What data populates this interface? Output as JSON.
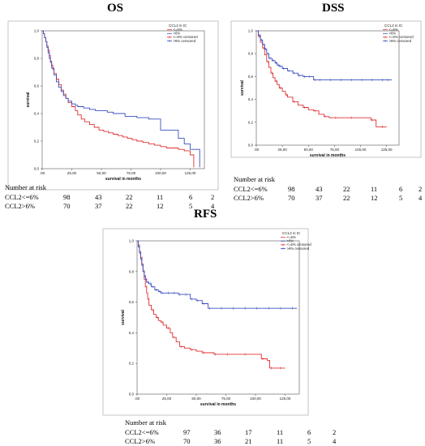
{
  "legend_title": "CCL2 in IC",
  "legend_items": [
    "<=6%",
    ">6%",
    "<=6% censored",
    ">6% censored"
  ],
  "ylabel": "survival",
  "xlabel": "survival in months",
  "risk_header": "Number at risk",
  "colors": {
    "low": "#e03030",
    "high": "#3a4fc0"
  },
  "chart_data": [
    {
      "type": "line",
      "title": "OS",
      "xlabel": "survival in months",
      "ylabel": "survival",
      "xlim": [
        0,
        137
      ],
      "ylim": [
        0,
        1
      ],
      "xticks": [
        ".00",
        "25,00",
        "50,00",
        "75,00",
        "100,00",
        "125,00"
      ],
      "yticks": [
        "0,0",
        "0,2",
        "0,4",
        "0,6",
        "0,8",
        "1,0"
      ],
      "legend": "top-right",
      "series": [
        {
          "name": "<=6%",
          "censor_style": "none",
          "x": [
            0,
            1,
            2,
            3,
            4,
            5,
            6,
            7,
            8,
            9,
            10,
            12,
            14,
            16,
            18,
            20,
            22,
            25,
            28,
            30,
            33,
            36,
            40,
            44,
            48,
            52,
            56,
            60,
            64,
            68,
            72,
            76,
            80,
            85,
            90,
            95,
            100,
            105,
            110,
            115,
            120,
            125,
            128
          ],
          "y": [
            1.0,
            0.98,
            0.95,
            0.92,
            0.89,
            0.86,
            0.82,
            0.78,
            0.75,
            0.72,
            0.69,
            0.65,
            0.61,
            0.57,
            0.54,
            0.51,
            0.48,
            0.45,
            0.42,
            0.39,
            0.36,
            0.34,
            0.32,
            0.3,
            0.28,
            0.27,
            0.26,
            0.25,
            0.24,
            0.23,
            0.22,
            0.21,
            0.2,
            0.19,
            0.18,
            0.17,
            0.16,
            0.15,
            0.15,
            0.14,
            0.13,
            0.1,
            0.01
          ]
        },
        {
          "name": ">6%",
          "censor_style": "none",
          "x": [
            0,
            1,
            2,
            3,
            4,
            5,
            6,
            7,
            8,
            10,
            12,
            14,
            16,
            18,
            20,
            22,
            25,
            28,
            30,
            35,
            40,
            45,
            50,
            55,
            60,
            70,
            80,
            90,
            100,
            110,
            115,
            120,
            125,
            130,
            133
          ],
          "y": [
            1.0,
            0.98,
            0.95,
            0.92,
            0.88,
            0.84,
            0.8,
            0.77,
            0.73,
            0.68,
            0.63,
            0.59,
            0.56,
            0.53,
            0.51,
            0.49,
            0.47,
            0.46,
            0.45,
            0.44,
            0.43,
            0.42,
            0.42,
            0.41,
            0.4,
            0.38,
            0.37,
            0.36,
            0.28,
            0.28,
            0.22,
            0.18,
            0.14,
            0.14,
            0.01
          ]
        }
      ],
      "risk": {
        "times": [
          0,
          25,
          50,
          75,
          100,
          125
        ],
        "rows": [
          {
            "label": "CCL2<=6%",
            "values": [
              98,
              43,
              22,
              11,
              6,
              2
            ]
          },
          {
            "label": "CCL2>6%",
            "values": [
              70,
              37,
              22,
              12,
              5,
              4
            ]
          }
        ]
      }
    },
    {
      "type": "line",
      "title": "DSS",
      "xlabel": "survival in months",
      "ylabel": "survival",
      "xlim": [
        0,
        137
      ],
      "ylim": [
        0,
        1
      ],
      "xticks": [
        ".00",
        "25,00",
        "50,00",
        "75,00",
        "100,00",
        "125,00"
      ],
      "yticks": [
        "0,0",
        "0,2",
        "0,4",
        "0,6",
        "0,8",
        "1,0"
      ],
      "legend": "top-right",
      "series": [
        {
          "name": "<=6%",
          "censor_style": "sparse",
          "x": [
            0,
            2,
            4,
            6,
            8,
            10,
            12,
            14,
            16,
            18,
            20,
            22,
            25,
            28,
            30,
            35,
            40,
            45,
            50,
            55,
            60,
            65,
            70,
            75,
            80,
            90,
            100,
            110,
            115,
            120,
            125
          ],
          "y": [
            1.0,
            0.95,
            0.9,
            0.85,
            0.79,
            0.73,
            0.68,
            0.63,
            0.59,
            0.56,
            0.53,
            0.5,
            0.47,
            0.44,
            0.42,
            0.38,
            0.35,
            0.33,
            0.31,
            0.3,
            0.27,
            0.25,
            0.24,
            0.24,
            0.24,
            0.24,
            0.24,
            0.22,
            0.16,
            0.16,
            0.16
          ]
        },
        {
          "name": ">6%",
          "censor_style": "dense",
          "x": [
            0,
            2,
            4,
            6,
            8,
            10,
            12,
            15,
            18,
            20,
            22,
            25,
            30,
            35,
            40,
            45,
            50,
            55,
            60,
            70,
            80,
            90,
            100,
            110,
            120,
            125,
            130
          ],
          "y": [
            1.0,
            0.96,
            0.92,
            0.88,
            0.84,
            0.8,
            0.76,
            0.74,
            0.72,
            0.7,
            0.69,
            0.67,
            0.65,
            0.63,
            0.61,
            0.6,
            0.6,
            0.57,
            0.57,
            0.57,
            0.57,
            0.57,
            0.57,
            0.57,
            0.57,
            0.57,
            0.57
          ]
        }
      ],
      "risk": {
        "times": [
          0,
          25,
          50,
          75,
          100,
          125
        ],
        "rows": [
          {
            "label": "CCL2<=6%",
            "values": [
              98,
              43,
              22,
              11,
              6,
              2
            ]
          },
          {
            "label": "CCL2>6%",
            "values": [
              70,
              37,
              22,
              12,
              5,
              4
            ]
          }
        ]
      }
    },
    {
      "type": "line",
      "title": "RFS",
      "xlabel": "survival in months",
      "ylabel": "survival",
      "xlim": [
        0,
        137
      ],
      "ylim": [
        0,
        1
      ],
      "xticks": [
        ".00",
        "25,00",
        "50,00",
        "75,00",
        "100,00",
        "125,00"
      ],
      "yticks": [
        "0,0",
        "0,2",
        "0,4",
        "0,6",
        "0,8",
        "1,0"
      ],
      "legend": "top-right",
      "series": [
        {
          "name": "<=6%",
          "censor_style": "sparse",
          "x": [
            0,
            1,
            2,
            3,
            4,
            5,
            6,
            7,
            8,
            9,
            10,
            12,
            14,
            16,
            18,
            20,
            22,
            25,
            28,
            30,
            33,
            36,
            40,
            45,
            50,
            55,
            60,
            65,
            70,
            75,
            80,
            90,
            100,
            105,
            110,
            112,
            115,
            120,
            125
          ],
          "y": [
            1.0,
            0.97,
            0.93,
            0.89,
            0.85,
            0.8,
            0.75,
            0.7,
            0.66,
            0.62,
            0.58,
            0.55,
            0.52,
            0.5,
            0.48,
            0.47,
            0.45,
            0.43,
            0.4,
            0.37,
            0.34,
            0.31,
            0.3,
            0.29,
            0.28,
            0.27,
            0.27,
            0.26,
            0.26,
            0.26,
            0.26,
            0.26,
            0.26,
            0.23,
            0.22,
            0.17,
            0.17,
            0.17,
            0.17
          ]
        },
        {
          "name": ">6%",
          "censor_style": "dense",
          "x": [
            0,
            1,
            2,
            3,
            4,
            5,
            6,
            7,
            8,
            10,
            12,
            15,
            18,
            20,
            25,
            30,
            35,
            40,
            45,
            50,
            55,
            60,
            70,
            80,
            90,
            100,
            110,
            120,
            130,
            135
          ],
          "y": [
            1.0,
            0.96,
            0.92,
            0.88,
            0.84,
            0.8,
            0.77,
            0.75,
            0.73,
            0.72,
            0.7,
            0.68,
            0.67,
            0.66,
            0.66,
            0.66,
            0.65,
            0.65,
            0.62,
            0.61,
            0.59,
            0.56,
            0.56,
            0.56,
            0.56,
            0.56,
            0.56,
            0.56,
            0.56,
            0.56
          ]
        }
      ],
      "risk": {
        "times": [
          0,
          25,
          50,
          75,
          100,
          125
        ],
        "rows": [
          {
            "label": "CCL2<=6%",
            "values": [
              97,
              36,
              17,
              11,
              6,
              2
            ]
          },
          {
            "label": "CCL2>6%",
            "values": [
              70,
              36,
              21,
              11,
              5,
              4
            ]
          }
        ]
      }
    }
  ]
}
